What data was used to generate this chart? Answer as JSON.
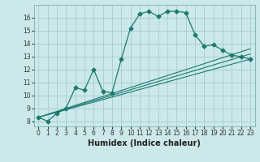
{
  "xlabel": "Humidex (Indice chaleur)",
  "bg_color": "#cce8ea",
  "grid_color": "#aad0d3",
  "line_color": "#1a7a6e",
  "xlim": [
    -0.5,
    23.5
  ],
  "ylim": [
    7.6,
    17.0
  ],
  "xticks": [
    0,
    1,
    2,
    3,
    4,
    5,
    6,
    7,
    8,
    9,
    10,
    11,
    12,
    13,
    14,
    15,
    16,
    17,
    18,
    19,
    20,
    21,
    22,
    23
  ],
  "yticks": [
    8,
    9,
    10,
    11,
    12,
    13,
    14,
    15,
    16
  ],
  "series1_x": [
    0,
    1,
    2,
    3,
    4,
    5,
    6,
    7,
    8,
    9,
    10,
    11,
    12,
    13,
    14,
    15,
    16,
    17,
    18,
    19,
    20,
    21,
    22,
    23
  ],
  "series1_y": [
    8.3,
    8.0,
    8.6,
    9.0,
    10.6,
    10.4,
    12.0,
    10.3,
    10.2,
    12.8,
    15.2,
    16.3,
    16.5,
    16.1,
    16.5,
    16.5,
    16.4,
    14.7,
    13.8,
    13.9,
    13.5,
    13.1,
    13.0,
    12.8
  ],
  "line2_x": [
    0,
    23
  ],
  "line2_y": [
    8.3,
    12.8
  ],
  "line3_x": [
    0,
    23
  ],
  "line3_y": [
    8.3,
    13.2
  ],
  "line4_x": [
    0,
    23
  ],
  "line4_y": [
    8.3,
    13.6
  ],
  "tick_fontsize": 5.5,
  "xlabel_fontsize": 7.0,
  "marker_size": 2.5
}
